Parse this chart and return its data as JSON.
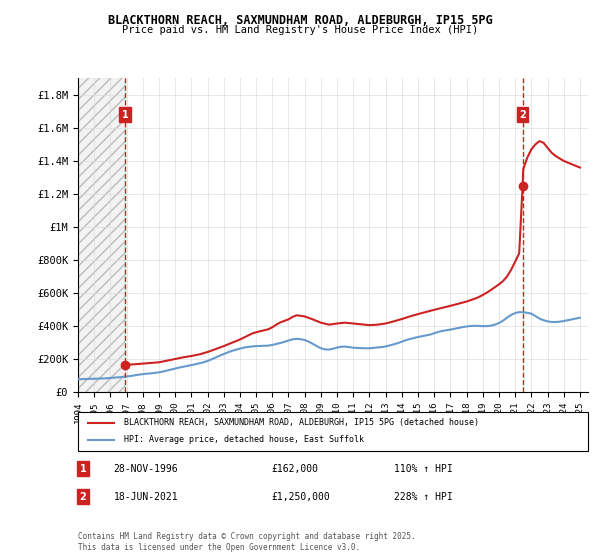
{
  "title1": "BLACKTHORN REACH, SAXMUNDHAM ROAD, ALDEBURGH, IP15 5PG",
  "title2": "Price paid vs. HM Land Registry's House Price Index (HPI)",
  "ylim": [
    0,
    1900000
  ],
  "yticks": [
    0,
    200000,
    400000,
    600000,
    800000,
    1000000,
    1200000,
    1400000,
    1600000,
    1800000
  ],
  "ytick_labels": [
    "£0",
    "£200K",
    "£400K",
    "£600K",
    "£800K",
    "£1M",
    "£1.2M",
    "£1.4M",
    "£1.6M",
    "£1.8M"
  ],
  "xlim_start": 1994.0,
  "xlim_end": 2025.5,
  "xticks": [
    1994,
    1995,
    1996,
    1997,
    1998,
    1999,
    2000,
    2001,
    2002,
    2003,
    2004,
    2005,
    2006,
    2007,
    2008,
    2009,
    2010,
    2011,
    2012,
    2013,
    2014,
    2015,
    2016,
    2017,
    2018,
    2019,
    2020,
    2021,
    2022,
    2023,
    2024,
    2025
  ],
  "hpi_color": "#6699cc",
  "price_color": "#cc2222",
  "grid_color": "#dddddd",
  "vline_color": "#cc2222",
  "annotation_box_color": "#cc2222",
  "sale1_x": 1996.91,
  "sale1_y": 162000,
  "sale1_label": "1",
  "sale1_date": "28-NOV-1996",
  "sale1_price": "£162,000",
  "sale1_hpi": "110% ↑ HPI",
  "sale2_x": 2021.46,
  "sale2_y": 1250000,
  "sale2_label": "2",
  "sale2_date": "18-JUN-2021",
  "sale2_price": "£1,250,000",
  "sale2_hpi": "228% ↑ HPI",
  "legend_label1": "BLACKTHORN REACH, SAXMUNDHAM ROAD, ALDEBURGH, IP15 5PG (detached house)",
  "legend_label2": "HPI: Average price, detached house, East Suffolk",
  "copyright_text": "Contains HM Land Registry data © Crown copyright and database right 2025.\nThis data is licensed under the Open Government Licence v3.0.",
  "hpi_data_x": [
    1994.0,
    1994.25,
    1994.5,
    1994.75,
    1995.0,
    1995.25,
    1995.5,
    1995.75,
    1996.0,
    1996.25,
    1996.5,
    1996.75,
    1997.0,
    1997.25,
    1997.5,
    1997.75,
    1998.0,
    1998.25,
    1998.5,
    1998.75,
    1999.0,
    1999.25,
    1999.5,
    1999.75,
    2000.0,
    2000.25,
    2000.5,
    2000.75,
    2001.0,
    2001.25,
    2001.5,
    2001.75,
    2002.0,
    2002.25,
    2002.5,
    2002.75,
    2003.0,
    2003.25,
    2003.5,
    2003.75,
    2004.0,
    2004.25,
    2004.5,
    2004.75,
    2005.0,
    2005.25,
    2005.5,
    2005.75,
    2006.0,
    2006.25,
    2006.5,
    2006.75,
    2007.0,
    2007.25,
    2007.5,
    2007.75,
    2008.0,
    2008.25,
    2008.5,
    2008.75,
    2009.0,
    2009.25,
    2009.5,
    2009.75,
    2010.0,
    2010.25,
    2010.5,
    2010.75,
    2011.0,
    2011.25,
    2011.5,
    2011.75,
    2012.0,
    2012.25,
    2012.5,
    2012.75,
    2013.0,
    2013.25,
    2013.5,
    2013.75,
    2014.0,
    2014.25,
    2014.5,
    2014.75,
    2015.0,
    2015.25,
    2015.5,
    2015.75,
    2016.0,
    2016.25,
    2016.5,
    2016.75,
    2017.0,
    2017.25,
    2017.5,
    2017.75,
    2018.0,
    2018.25,
    2018.5,
    2018.75,
    2019.0,
    2019.25,
    2019.5,
    2019.75,
    2020.0,
    2020.25,
    2020.5,
    2020.75,
    2021.0,
    2021.25,
    2021.5,
    2021.75,
    2022.0,
    2022.25,
    2022.5,
    2022.75,
    2023.0,
    2023.25,
    2023.5,
    2023.75,
    2024.0,
    2024.25,
    2024.5,
    2024.75,
    2025.0
  ],
  "hpi_data_y": [
    77000,
    78000,
    79000,
    80000,
    80000,
    81000,
    82000,
    83000,
    85000,
    87000,
    89000,
    91000,
    94000,
    97000,
    101000,
    105000,
    108000,
    111000,
    113000,
    116000,
    119000,
    124000,
    130000,
    136000,
    142000,
    148000,
    153000,
    158000,
    163000,
    168000,
    174000,
    180000,
    188000,
    198000,
    209000,
    220000,
    230000,
    240000,
    249000,
    256000,
    263000,
    269000,
    273000,
    276000,
    278000,
    279000,
    280000,
    281000,
    285000,
    291000,
    297000,
    304000,
    312000,
    319000,
    322000,
    320000,
    315000,
    305000,
    292000,
    278000,
    265000,
    258000,
    257000,
    262000,
    269000,
    274000,
    275000,
    272000,
    268000,
    267000,
    266000,
    265000,
    265000,
    267000,
    270000,
    272000,
    276000,
    282000,
    289000,
    296000,
    305000,
    314000,
    321000,
    327000,
    333000,
    338000,
    343000,
    348000,
    356000,
    364000,
    370000,
    374000,
    378000,
    383000,
    388000,
    393000,
    397000,
    400000,
    401000,
    400000,
    399000,
    399000,
    402000,
    408000,
    418000,
    432000,
    450000,
    467000,
    478000,
    484000,
    483000,
    480000,
    475000,
    460000,
    445000,
    435000,
    428000,
    424000,
    424000,
    426000,
    430000,
    435000,
    440000,
    445000,
    450000
  ],
  "price_data_x": [
    1994.0,
    1994.1,
    1996.91,
    1996.92,
    1997.0,
    1997.5,
    1998.0,
    1998.5,
    1999.0,
    1999.5,
    2000.0,
    2000.5,
    2001.0,
    2001.5,
    2002.0,
    2002.5,
    2003.0,
    2003.5,
    2004.0,
    2004.25,
    2004.5,
    2004.75,
    2005.0,
    2005.25,
    2005.5,
    2005.75,
    2006.0,
    2006.25,
    2006.5,
    2007.0,
    2007.25,
    2007.5,
    2008.0,
    2008.5,
    2009.0,
    2009.5,
    2010.0,
    2010.5,
    2011.0,
    2011.5,
    2012.0,
    2012.5,
    2013.0,
    2013.5,
    2014.0,
    2014.5,
    2015.0,
    2015.5,
    2016.0,
    2016.5,
    2017.0,
    2017.5,
    2018.0,
    2018.5,
    2018.75,
    2019.0,
    2019.25,
    2019.5,
    2019.75,
    2020.0,
    2020.25,
    2020.5,
    2020.75,
    2021.0,
    2021.25,
    2021.46,
    2021.5,
    2021.75,
    2022.0,
    2022.25,
    2022.5,
    2022.75,
    2023.0,
    2023.25,
    2023.5,
    2024.0,
    2024.5,
    2025.0
  ],
  "price_data_y": [
    null,
    null,
    162000,
    162000,
    165000,
    168000,
    172000,
    176000,
    180000,
    190000,
    200000,
    210000,
    218000,
    228000,
    242000,
    260000,
    278000,
    298000,
    318000,
    330000,
    342000,
    354000,
    362000,
    368000,
    374000,
    380000,
    392000,
    408000,
    422000,
    440000,
    455000,
    465000,
    458000,
    440000,
    420000,
    408000,
    415000,
    420000,
    415000,
    410000,
    405000,
    408000,
    415000,
    428000,
    442000,
    458000,
    472000,
    485000,
    498000,
    510000,
    522000,
    535000,
    548000,
    565000,
    575000,
    588000,
    602000,
    618000,
    635000,
    652000,
    672000,
    700000,
    740000,
    790000,
    840000,
    1250000,
    1350000,
    1420000,
    1470000,
    1500000,
    1520000,
    1510000,
    1480000,
    1450000,
    1430000,
    1400000,
    1380000,
    1360000
  ]
}
